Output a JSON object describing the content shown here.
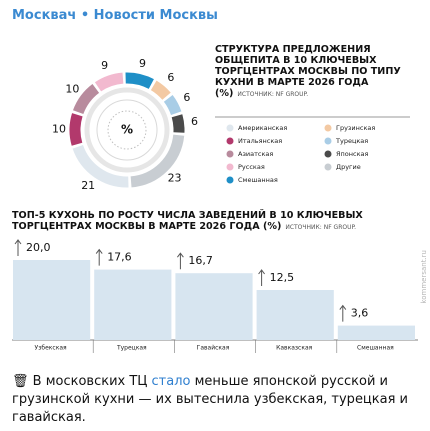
{
  "channel": "Москвач • Новости Москвы",
  "watermark": "kommersant.ru",
  "chart_data": [
    {
      "type": "pie",
      "title": "СТРУКТУРА ПРЕДЛОЖЕНИЯ ОБЩЕПИТА В 10 КЛЮЧЕВЫХ ТОРГЦЕНТРАХ МОСКВЫ ПО ТИПУ КУХНИ В МАРТЕ 2026 ГОДА (%)",
      "source": "ИСТОЧНИК: NF GROUP.",
      "center_label": "%",
      "categories": [
        "Американская",
        "Итальянская",
        "Азиатская",
        "Русская",
        "Смешанная",
        "Грузинская",
        "Турецкая",
        "Японская",
        "Другие"
      ],
      "values": [
        21,
        10,
        10,
        9,
        9,
        6,
        6,
        6,
        23
      ],
      "colors": [
        "#dfe7ee",
        "#b2396c",
        "#b88b9d",
        "#f2b9cf",
        "#1f8fc7",
        "#f3c9a3",
        "#a9cde6",
        "#4a4a4a",
        "#c8cdd2"
      ]
    },
    {
      "type": "bar",
      "title": "ТОП-5 КУХОНЬ ПО РОСТУ ЧИСЛА ЗАВЕДЕНИЙ В 10 КЛЮЧЕВЫХ ТОРГЦЕНТРАХ МОСКВЫ В МАРТЕ 2026 ГОДА (%)",
      "source": "ИСТОЧНИК: NF GROUP.",
      "categories": [
        "Узбекская",
        "Турецкая",
        "Гавайская",
        "Кавказская",
        "Смешанная"
      ],
      "values": [
        20.0,
        17.6,
        16.7,
        12.5,
        3.6
      ],
      "value_labels": [
        "20,0",
        "17,6",
        "16,7",
        "12,5",
        "3,6"
      ],
      "color": "#d7e5f0"
    }
  ],
  "caption": {
    "icon": "🗑",
    "before": " В московских ТЦ ",
    "link": "стало",
    "after": " меньше японской русской и грузинской кухни — их вытеснила узбекская, турецкая и гавайская."
  }
}
